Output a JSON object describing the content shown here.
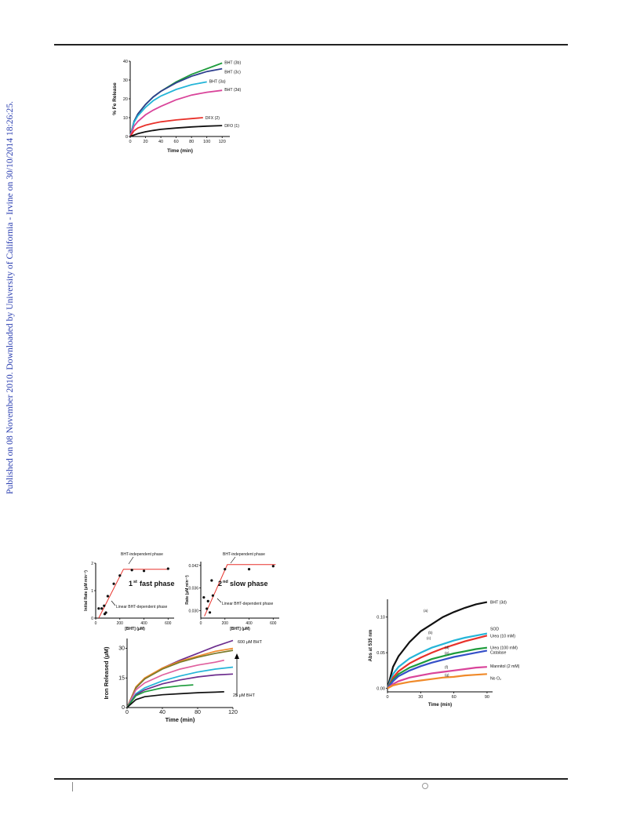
{
  "sidebar": {
    "text": "Published on 08 November 2010. Downloaded by University of California - Irvine on 30/10/2014 18:26:25."
  },
  "colors": {
    "black": "#111111",
    "red": "#e8312a",
    "green": "#1e9c3c",
    "navy": "#2e3f8e",
    "cyan": "#25b5d8",
    "magenta": "#d9449a",
    "purple": "#6c2d8e",
    "olive": "#7a7a2a",
    "orange": "#f08a2a",
    "blue": "#3550c8",
    "pink": "#e0609e",
    "brown": "#8a6a3a",
    "teal": "#1ba4a4"
  },
  "chart_data": [
    {
      "type": "line",
      "xlabel": "Time (min)",
      "ylabel": "% Fe Release",
      "xlim": [
        0,
        130
      ],
      "ylim": [
        0,
        40
      ],
      "xticks": [
        "0",
        "20",
        "40",
        "60",
        "80",
        "100",
        "120"
      ],
      "yticks": [
        "0",
        "10",
        "20",
        "30",
        "40"
      ],
      "series": [
        {
          "name": "BHT (3b)",
          "color": "#1e9c3c",
          "x": [
            0,
            5,
            10,
            20,
            30,
            40,
            60,
            80,
            100,
            120
          ],
          "y": [
            0,
            8,
            12,
            17,
            21,
            24,
            29,
            33,
            36,
            39
          ]
        },
        {
          "name": "BHT (3c)",
          "color": "#2e3f8e",
          "x": [
            0,
            5,
            10,
            20,
            30,
            40,
            60,
            80,
            100,
            120
          ],
          "y": [
            0,
            8,
            12,
            17,
            21,
            24,
            28.5,
            32,
            34.5,
            36
          ]
        },
        {
          "name": "BHT (3a)",
          "color": "#25b5d8",
          "x": [
            0,
            5,
            10,
            20,
            30,
            40,
            60,
            80,
            100
          ],
          "y": [
            0,
            7.5,
            11,
            15.5,
            19,
            21.5,
            25,
            27.5,
            29
          ]
        },
        {
          "name": "BHT (3d)",
          "color": "#d9449a",
          "x": [
            0,
            5,
            10,
            20,
            30,
            40,
            60,
            80,
            100,
            120
          ],
          "y": [
            0,
            5.5,
            8,
            11.5,
            14,
            16,
            19.5,
            22,
            23.5,
            24.5
          ]
        },
        {
          "name": "DFX (2)",
          "color": "#e8312a",
          "x": [
            0,
            5,
            10,
            20,
            30,
            40,
            60,
            80,
            95
          ],
          "y": [
            0,
            3,
            4.5,
            6,
            7,
            7.8,
            8.8,
            9.5,
            10
          ]
        },
        {
          "name": "DFO (1)",
          "color": "#111111",
          "x": [
            0,
            5,
            10,
            20,
            30,
            40,
            60,
            80,
            100,
            120
          ],
          "y": [
            0,
            0.8,
            1.5,
            2.5,
            3.2,
            3.8,
            4.5,
            5.1,
            5.5,
            5.8
          ]
        }
      ]
    },
    {
      "type": "scatter",
      "xlabel": "[BHT] (μM)",
      "ylabel": "Initial Rate (μM min⁻¹)",
      "xlim": [
        0,
        650
      ],
      "ylim": [
        0,
        2
      ],
      "xticks": [
        "0",
        "200",
        "400",
        "600"
      ],
      "yticks": [
        "0",
        "1",
        "2"
      ],
      "annotations": [
        "BHT-independent phase",
        "fast phase",
        "Linear BHT-dependent phase"
      ],
      "points": {
        "x": [
          25,
          50,
          70,
          75,
          85,
          100,
          150,
          200,
          300,
          400,
          600
        ],
        "y": [
          0.35,
          0.35,
          0.45,
          0.15,
          0.2,
          0.8,
          1.25,
          1.55,
          1.75,
          1.72,
          1.8
        ]
      },
      "fit": {
        "x": [
          25,
          230,
          600
        ],
        "y": [
          0,
          1.78,
          1.78
        ]
      }
    },
    {
      "type": "scatter",
      "xlabel": "[BHT] (μM)",
      "ylabel": "Rate (μM min⁻¹)",
      "xlim": [
        0,
        650
      ],
      "ylim": [
        0.028,
        0.043
      ],
      "xticks": [
        "0",
        "200",
        "400",
        "600"
      ],
      "yticks": [
        "0.030",
        "0.036",
        "0.042"
      ],
      "annotations": [
        "BHT-independent phase",
        "slow phase",
        "Linear BHT-dependent phase"
      ],
      "points": {
        "x": [
          25,
          50,
          60,
          75,
          90,
          100,
          200,
          400,
          600
        ],
        "y": [
          0.0335,
          0.0305,
          0.0325,
          0.0295,
          0.038,
          0.034,
          0.041,
          0.041,
          0.0418
        ]
      },
      "fit": {
        "x": [
          30,
          220,
          620
        ],
        "y": [
          0.0285,
          0.0422,
          0.0422
        ]
      }
    },
    {
      "type": "line",
      "xlabel": "Time (min)",
      "ylabel": "Iron Released (μM)",
      "xlim": [
        0,
        120
      ],
      "ylim": [
        0,
        35
      ],
      "xticks": [
        "0",
        "40",
        "80",
        "120"
      ],
      "yticks": [
        "0",
        "15",
        "30"
      ],
      "annotations": [
        "600 μM BHT",
        "25 μM BHT"
      ],
      "series": [
        {
          "color": "#6c2d8e",
          "x": [
            0,
            10,
            20,
            40,
            60,
            80,
            100,
            120
          ],
          "y": [
            0,
            10,
            14.5,
            20,
            24,
            27.5,
            31,
            34
          ]
        },
        {
          "color": "#f08a2a",
          "x": [
            0,
            10,
            20,
            40,
            60,
            80,
            100,
            120
          ],
          "y": [
            0,
            10.5,
            15,
            20,
            23.5,
            26,
            28.5,
            30
          ]
        },
        {
          "color": "#7a7a2a",
          "x": [
            0,
            10,
            20,
            40,
            60,
            80,
            100,
            120
          ],
          "y": [
            0,
            10,
            14.5,
            19.5,
            23,
            25.5,
            27.5,
            29
          ]
        },
        {
          "color": "#e0609e",
          "x": [
            0,
            10,
            20,
            40,
            60,
            80,
            100,
            110
          ],
          "y": [
            0,
            9,
            12.5,
            16.5,
            19.5,
            21.5,
            23,
            24
          ]
        },
        {
          "color": "#25b5d8",
          "x": [
            0,
            10,
            20,
            40,
            60,
            80,
            100,
            120
          ],
          "y": [
            0,
            7,
            10,
            13.5,
            16,
            18,
            19.5,
            20.5
          ]
        },
        {
          "color": "#6c2d8e",
          "x": [
            0,
            10,
            20,
            40,
            60,
            80,
            100,
            120
          ],
          "y": [
            0,
            6.5,
            9,
            12,
            14,
            15.5,
            16.5,
            17
          ]
        },
        {
          "color": "#1e9c3c",
          "x": [
            0,
            10,
            20,
            40,
            60,
            75
          ],
          "y": [
            0,
            6,
            8,
            10,
            11,
            11.5
          ]
        },
        {
          "color": "#111111",
          "x": [
            0,
            10,
            20,
            40,
            60,
            80,
            100,
            110
          ],
          "y": [
            0,
            4,
            5.5,
            6.5,
            7,
            7.5,
            7.8,
            8
          ]
        }
      ]
    },
    {
      "type": "line",
      "xlabel": "Time (min)",
      "ylabel": "Abs at 535 nm",
      "xlim": [
        0,
        95
      ],
      "ylim": [
        -0.005,
        0.125
      ],
      "xticks": [
        "0",
        "30",
        "60",
        "90"
      ],
      "yticks": [
        "0.00",
        "0.05",
        "0.10"
      ],
      "series": [
        {
          "name": "BHT (3d)",
          "tag": "(a)",
          "color": "#111111",
          "x": [
            0,
            5,
            10,
            20,
            30,
            40,
            50,
            60,
            70,
            80,
            90
          ],
          "y": [
            0,
            0.03,
            0.045,
            0.065,
            0.08,
            0.09,
            0.1,
            0.107,
            0.113,
            0.118,
            0.121
          ]
        },
        {
          "name": "SOD",
          "tag": "(b)",
          "color": "#25b5d8",
          "x": [
            0,
            5,
            10,
            20,
            30,
            40,
            50,
            60,
            70,
            80,
            90
          ],
          "y": [
            0,
            0.02,
            0.03,
            0.042,
            0.05,
            0.057,
            0.062,
            0.067,
            0.071,
            0.074,
            0.077
          ]
        },
        {
          "name": "Urea (10 mM)",
          "tag": "(c)",
          "color": "#e8312a",
          "x": [
            0,
            5,
            10,
            20,
            30,
            40,
            50,
            60,
            70,
            80,
            90
          ],
          "y": [
            0,
            0.015,
            0.024,
            0.035,
            0.043,
            0.05,
            0.056,
            0.061,
            0.066,
            0.07,
            0.074
          ]
        },
        {
          "name": "Urea (100 mM)",
          "tag": "(d)",
          "color": "#1e9c3c",
          "x": [
            0,
            5,
            10,
            20,
            30,
            40,
            50,
            60,
            70,
            80,
            90
          ],
          "y": [
            0,
            0.012,
            0.02,
            0.029,
            0.035,
            0.041,
            0.045,
            0.049,
            0.052,
            0.055,
            0.057
          ]
        },
        {
          "name": "Catalase",
          "tag": "(e)",
          "color": "#3550c8",
          "x": [
            0,
            5,
            10,
            20,
            30,
            40,
            50,
            60,
            70,
            80,
            90
          ],
          "y": [
            0,
            0.01,
            0.017,
            0.025,
            0.031,
            0.036,
            0.04,
            0.044,
            0.047,
            0.05,
            0.053
          ]
        },
        {
          "name": "Mannitol (2 mM)",
          "tag": "(f)",
          "color": "#d9449a",
          "x": [
            0,
            5,
            10,
            20,
            30,
            40,
            50,
            60,
            70,
            80,
            90
          ],
          "y": [
            0,
            0.006,
            0.01,
            0.015,
            0.018,
            0.021,
            0.023,
            0.025,
            0.027,
            0.029,
            0.03
          ]
        },
        {
          "name": "No O₂",
          "tag": "(g)",
          "color": "#f08a2a",
          "x": [
            0,
            5,
            10,
            20,
            30,
            40,
            50,
            60,
            70,
            80,
            90
          ],
          "y": [
            0,
            0.004,
            0.006,
            0.009,
            0.011,
            0.013,
            0.015,
            0.016,
            0.018,
            0.019,
            0.02
          ]
        }
      ]
    }
  ]
}
